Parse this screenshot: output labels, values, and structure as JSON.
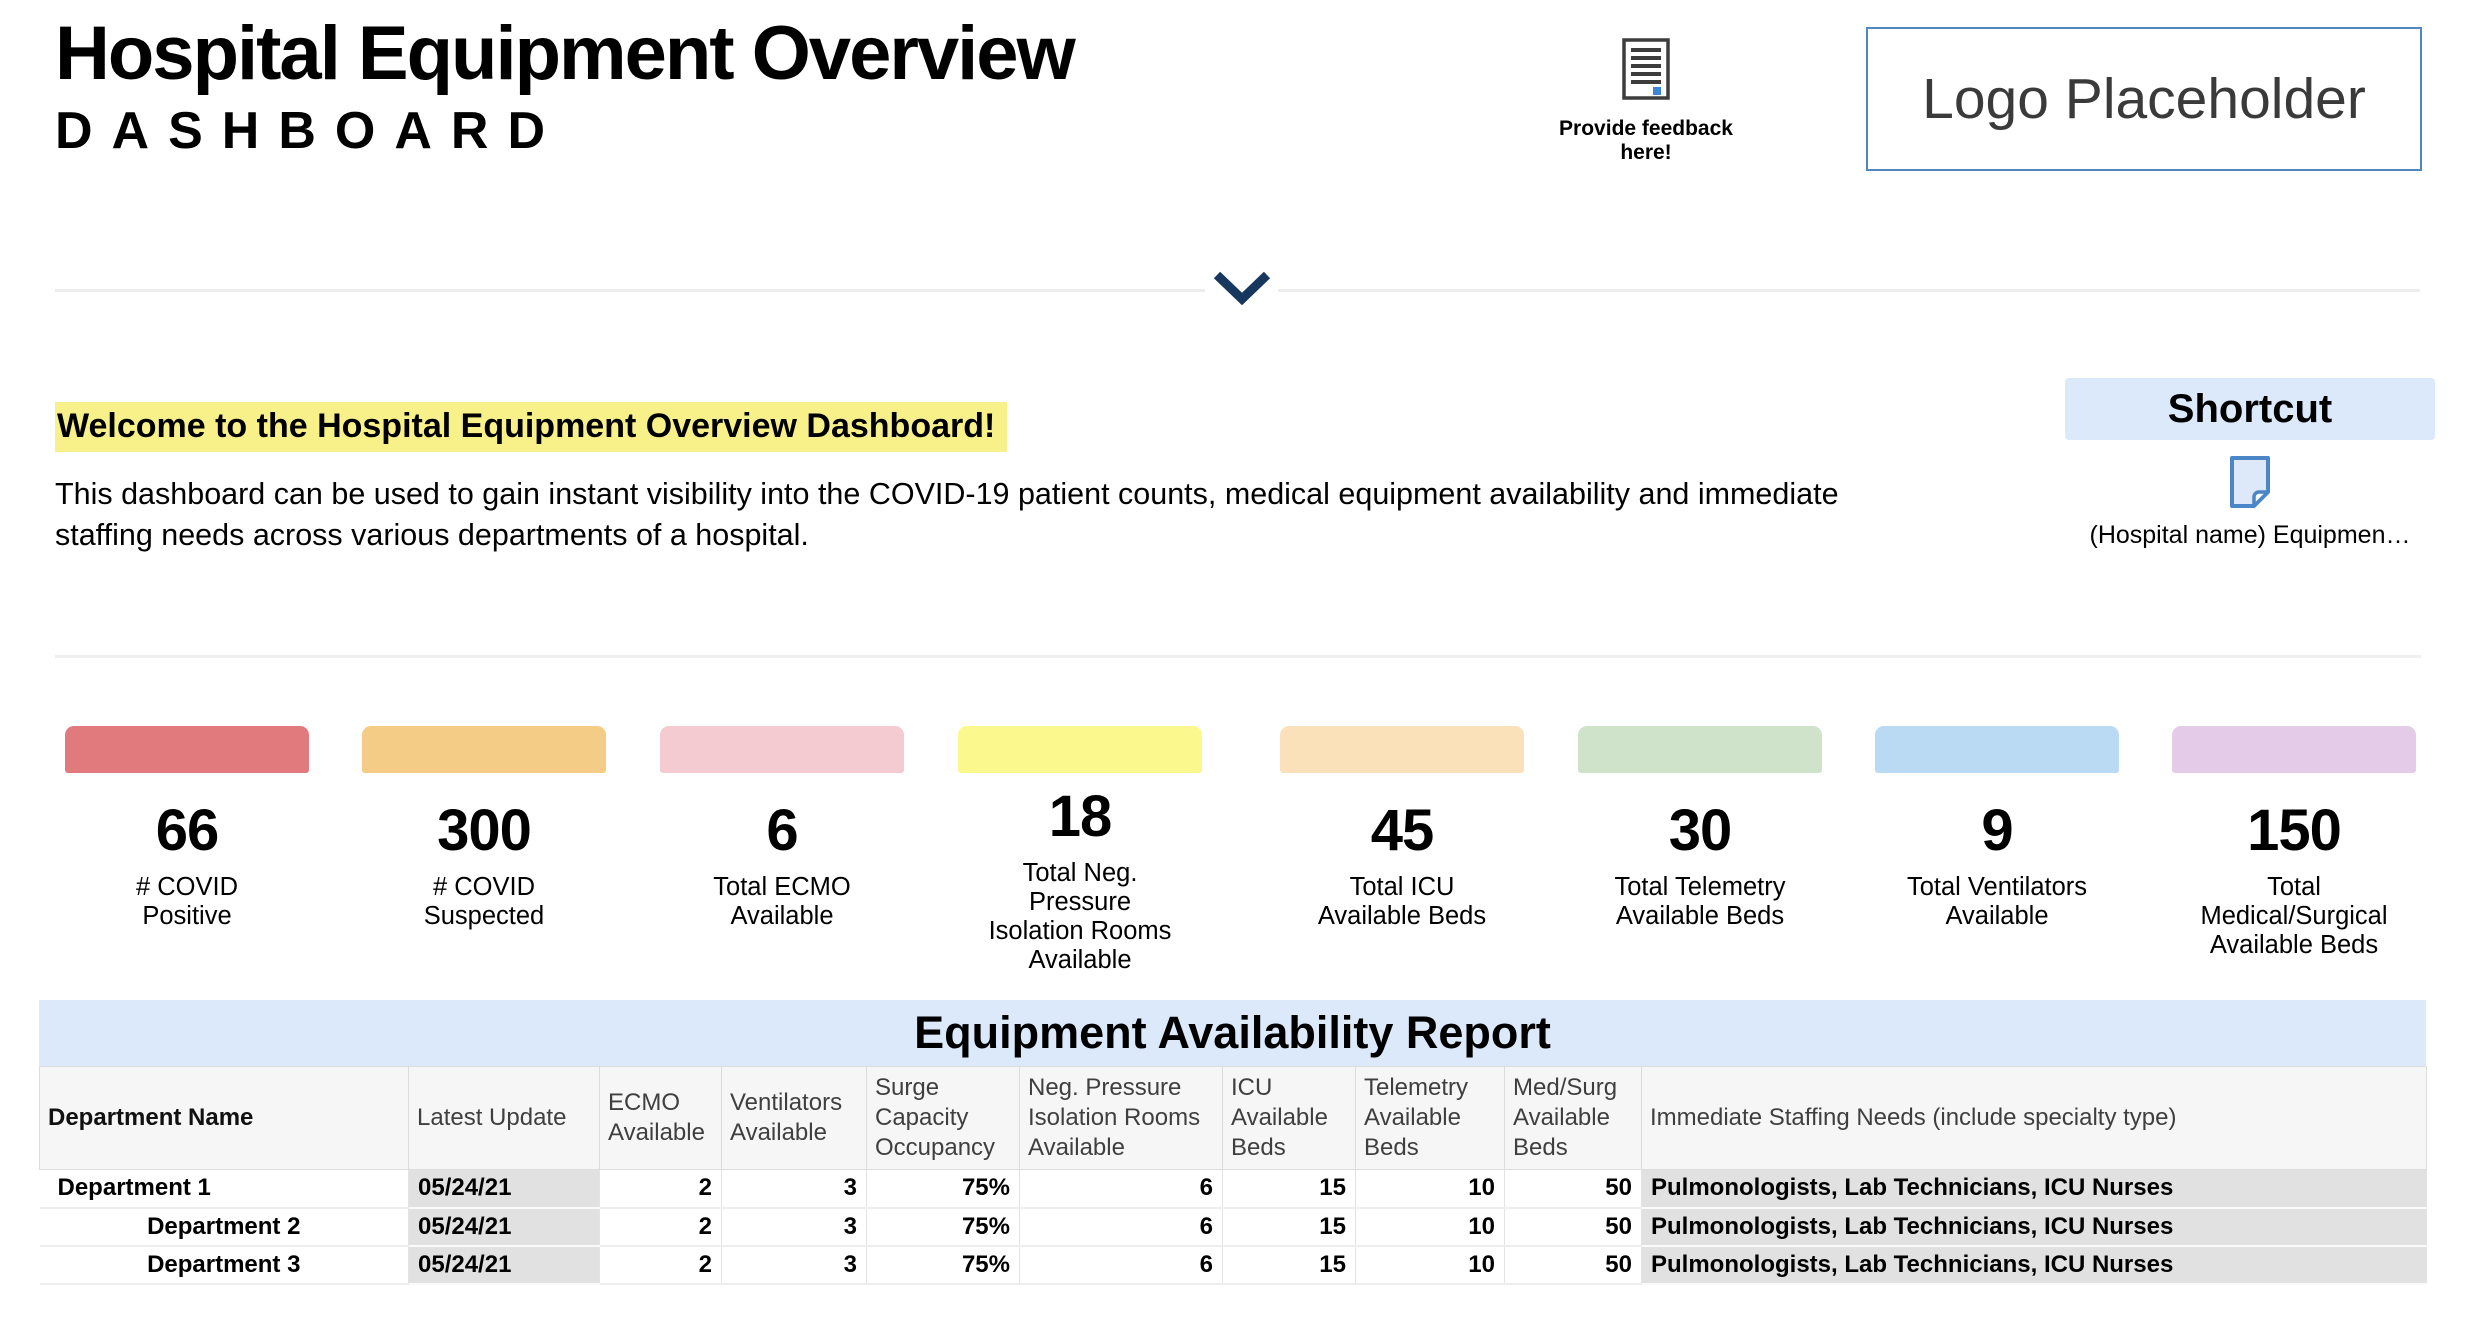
{
  "header": {
    "title": "Hospital Equipment Overview",
    "subtitle": "DASHBOARD",
    "feedback_label": "Provide feedback here!",
    "logo_text": "Logo Placeholder"
  },
  "welcome": {
    "heading": "Welcome to the Hospital Equipment Overview Dashboard!",
    "body": "This dashboard can be used to gain instant visibility into the COVID-19 patient counts, medical equipment availability and immediate staffing needs across various departments of a hospital."
  },
  "shortcut": {
    "title": "Shortcut",
    "link_label": "(Hospital name) Equipmen…"
  },
  "colors": {
    "highlight": "#f8f18a",
    "panel_blue": "#dbe9fb",
    "chevron": "#17375e",
    "logo_border": "#5286bf",
    "icon_blue": "#4a86c8"
  },
  "metrics": [
    {
      "value": "66",
      "label": "# COVID\nPositive",
      "color": "#e07a7d"
    },
    {
      "value": "300",
      "label": "# COVID\nSuspected",
      "color": "#f5cc85"
    },
    {
      "value": "6",
      "label": "Total ECMO\nAvailable",
      "color": "#f3cbd1"
    },
    {
      "value": "18",
      "label": "Total Neg.\nPressure\nIsolation Rooms\nAvailable",
      "color": "#fbf88e"
    },
    {
      "value": "45",
      "label": "Total ICU\nAvailable Beds",
      "color": "#fae1ba"
    },
    {
      "value": "30",
      "label": "Total Telemetry\nAvailable Beds",
      "color": "#cee3ca"
    },
    {
      "value": "9",
      "label": "Total Ventilators\nAvailable",
      "color": "#bad9f3"
    },
    {
      "value": "150",
      "label": "Total\nMedical/Surgical\nAvailable Beds",
      "color": "#e4cbe7"
    }
  ],
  "report": {
    "title": "Equipment Availability Report",
    "columns": [
      "Department Name",
      "Latest Update",
      "ECMO Available",
      "Ventilators Available",
      "Surge Capacity Occupancy",
      "Neg. Pressure Isolation Rooms Available",
      "ICU Available Beds",
      "Telemetry Available Beds",
      "Med/Surg Available Beds",
      "Immediate Staffing Needs (include specialty type)"
    ],
    "rows": [
      [
        "Department 1",
        "05/24/21",
        "2",
        "3",
        "75%",
        "6",
        "15",
        "10",
        "50",
        "Pulmonologists, Lab Technicians, ICU Nurses"
      ],
      [
        "Department 2",
        "05/24/21",
        "2",
        "3",
        "75%",
        "6",
        "15",
        "10",
        "50",
        "Pulmonologists, Lab Technicians, ICU Nurses"
      ],
      [
        "Department 3",
        "05/24/21",
        "2",
        "3",
        "75%",
        "6",
        "15",
        "10",
        "50",
        "Pulmonologists, Lab Technicians, ICU Nurses"
      ]
    ]
  }
}
